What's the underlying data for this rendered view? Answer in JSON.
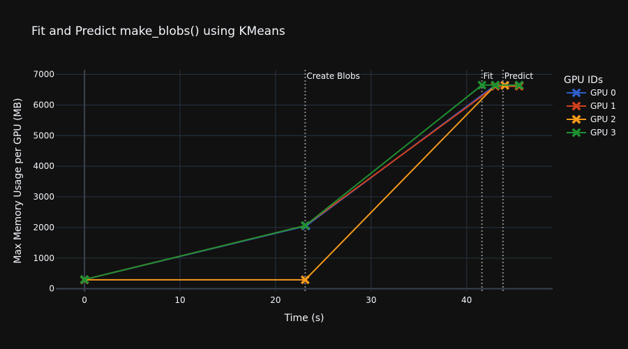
{
  "chart_data": {
    "type": "line",
    "title": "Fit and Predict make_blobs() using KMeans",
    "xlabel": "Time (s)",
    "ylabel": "Max Memory Usage per GPU (MB)",
    "xlim": [
      -3,
      49
    ],
    "ylim": [
      -100,
      7150
    ],
    "xticks": [
      0,
      10,
      20,
      30,
      40
    ],
    "yticks": [
      0,
      1000,
      2000,
      3000,
      4000,
      5000,
      6000,
      7000
    ],
    "grid": true,
    "legend": {
      "title": "GPU IDs",
      "position": "right"
    },
    "series": [
      {
        "name": "GPU 0",
        "color": "#2f5ecc",
        "marker": "x",
        "x": [
          0,
          23.2,
          43.0,
          44.0,
          45.5
        ],
        "y": [
          300,
          2050,
          6650,
          6650,
          6650
        ]
      },
      {
        "name": "GPU 1",
        "color": "#d1401f",
        "marker": "x",
        "x": [
          0,
          23.1,
          43.0,
          45.5
        ],
        "y": [
          300,
          2060,
          6610,
          6610
        ]
      },
      {
        "name": "GPU 2",
        "color": "#f59a1b",
        "marker": "x",
        "x": [
          0,
          23.1,
          43.0,
          44.0,
          45.5
        ],
        "y": [
          290,
          290,
          6640,
          6640,
          6640
        ]
      },
      {
        "name": "GPU 3",
        "color": "#1f9131",
        "marker": "x",
        "x": [
          0,
          23.1,
          41.6,
          43.0,
          45.5
        ],
        "y": [
          300,
          2060,
          6650,
          6650,
          6650
        ]
      }
    ],
    "annotations": [
      {
        "x": 23.1,
        "label": "Create Blobs"
      },
      {
        "x": 41.6,
        "label": "Fit"
      },
      {
        "x": 43.8,
        "label": "Predict"
      }
    ]
  }
}
